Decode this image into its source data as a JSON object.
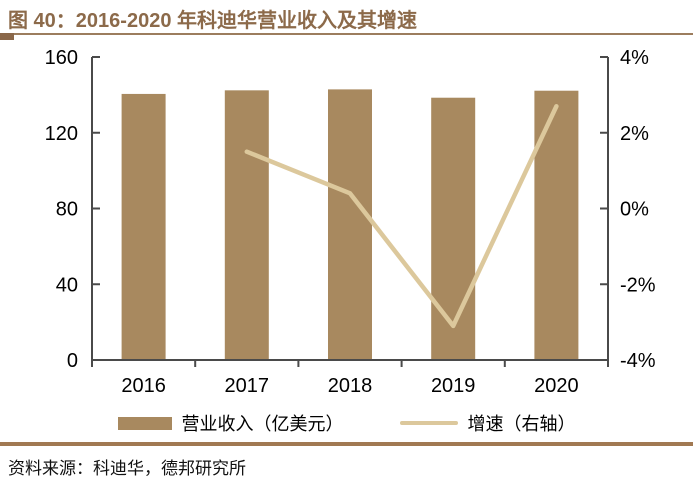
{
  "title": "图 40：2016-2020 年科迪华营业收入及其增速",
  "source": "资料来源：科迪华，德邦研究所",
  "colors": {
    "title": "#8c6a4a",
    "bar": "#a8895f",
    "line": "#dcc89c",
    "axis": "#4a4a4a",
    "tick_label": "#000000",
    "divider_top": "#9c7d5e",
    "divider_accent": "#8a6749",
    "divider_bottom": "#a17952"
  },
  "legend": [
    {
      "type": "bar",
      "label": "营业收入（亿美元）"
    },
    {
      "type": "line",
      "label": "增速（右轴）"
    }
  ],
  "chart_data": {
    "type": "bar+line",
    "title": "2016-2020 年科迪华营业收入及其增速",
    "categories": [
      "2016",
      "2017",
      "2018",
      "2019",
      "2020"
    ],
    "series": [
      {
        "name": "营业收入（亿美元）",
        "type": "bar",
        "axis": "left",
        "values": [
          140.5,
          142.4,
          142.9,
          138.5,
          142.2
        ]
      },
      {
        "name": "增速（右轴）",
        "type": "line",
        "axis": "right",
        "unit": "%",
        "values": [
          null,
          1.5,
          0.4,
          -3.1,
          2.7
        ]
      }
    ],
    "left_axis": {
      "min": 0,
      "max": 160,
      "ticks": [
        0,
        40,
        80,
        120,
        160
      ]
    },
    "right_axis": {
      "min": -4,
      "max": 4,
      "ticks": [
        -4,
        -2,
        0,
        2,
        4
      ],
      "suffix": "%",
      "tick_labels": [
        "-4%",
        "-2%",
        "0%",
        "2%",
        "4%"
      ]
    },
    "grid": false,
    "legend_position": "bottom"
  }
}
